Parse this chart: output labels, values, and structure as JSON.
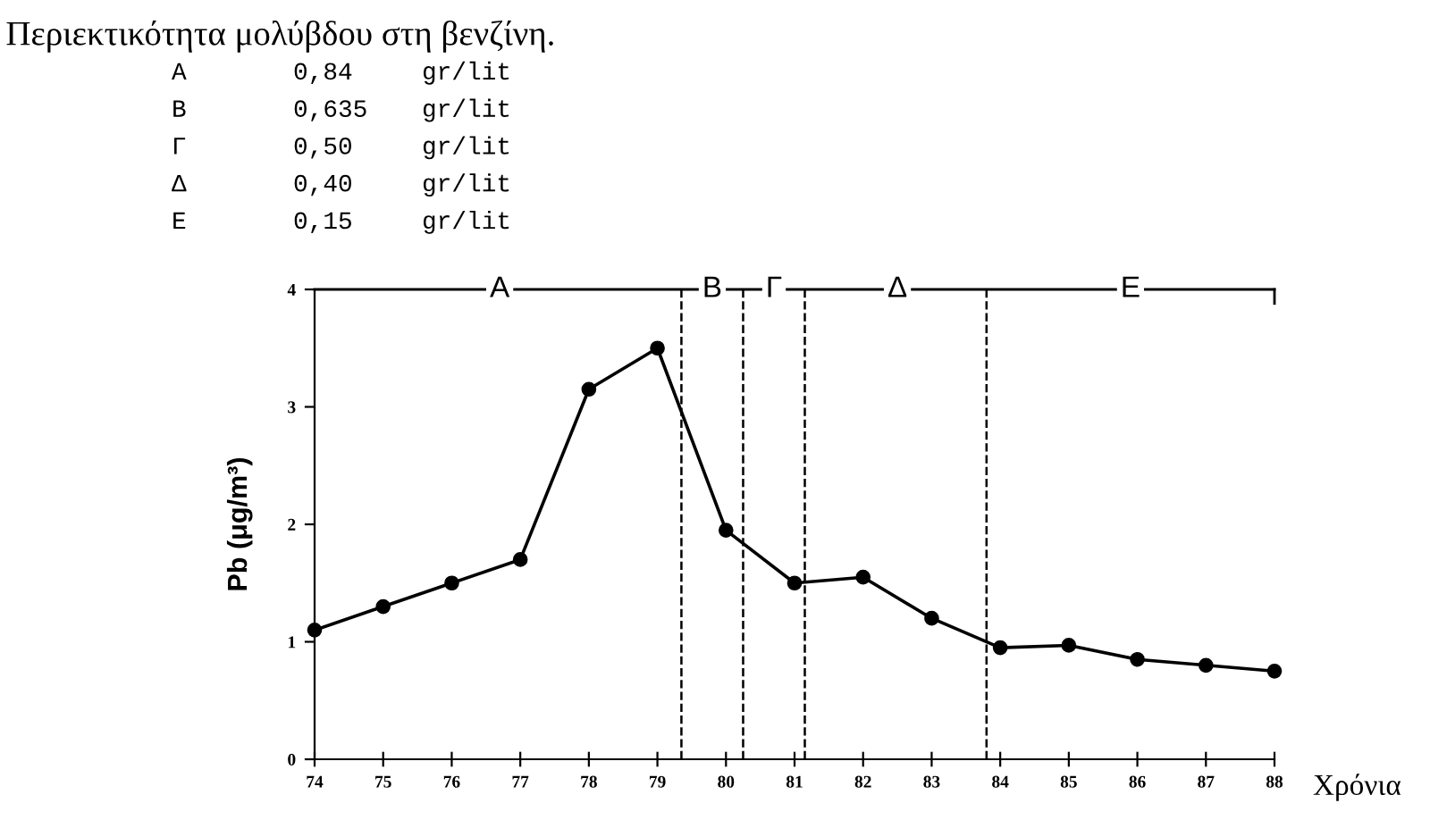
{
  "chart_data": {
    "type": "line",
    "title": "Περιεκτικότητα μολύβδου στη βενζίνη.",
    "annotations": [
      "Α 0,84 gr/lit",
      "Β 0,635 gr/lit",
      "Γ 0,50 gr/lit",
      "Δ 0,40 gr/lit",
      "Ε 0,15 gr/lit",
      {
        "text": "Α",
        "x": 76.7,
        "y": 4
      },
      {
        "text": "Β",
        "x": 79.8,
        "y": 4
      },
      {
        "text": "Γ",
        "x": 80.7,
        "y": 4
      },
      {
        "text": "Δ",
        "x": 82.5,
        "y": 4
      },
      {
        "text": "Ε",
        "x": 85.9,
        "y": 4
      }
    ],
    "xlabel": "Χρόνια",
    "ylabel": "Pb (μg/m³)",
    "x": [
      74,
      75,
      76,
      77,
      78,
      79,
      80,
      81,
      82,
      83,
      84,
      85,
      86,
      87,
      88
    ],
    "series": [
      {
        "color": "#000000",
        "values": [
          1.1,
          1.3,
          1.5,
          1.7,
          3.15,
          3.5,
          1.95,
          1.5,
          1.55,
          1.2,
          0.95,
          0.97,
          0.85,
          0.8,
          0.75
        ]
      }
    ],
    "marker": "circle",
    "line_style": "solid",
    "ref_lines": [
      {
        "axis": "y",
        "value": 4,
        "line_style": "solid"
      },
      {
        "axis": "x",
        "value": 79.35,
        "line_style": "dashed"
      },
      {
        "axis": "x",
        "value": 80.25,
        "line_style": "dashed"
      },
      {
        "axis": "x",
        "value": 81.15,
        "line_style": "dashed"
      },
      {
        "axis": "x",
        "value": 83.8,
        "line_style": "dashed"
      }
    ],
    "xlim": [
      74,
      88
    ],
    "ylim": [
      0,
      4
    ],
    "xticks": [
      74,
      75,
      76,
      77,
      78,
      79,
      80,
      81,
      82,
      83,
      84,
      85,
      86,
      87,
      88
    ],
    "yticks": [
      0,
      1,
      2,
      3,
      4
    ]
  }
}
